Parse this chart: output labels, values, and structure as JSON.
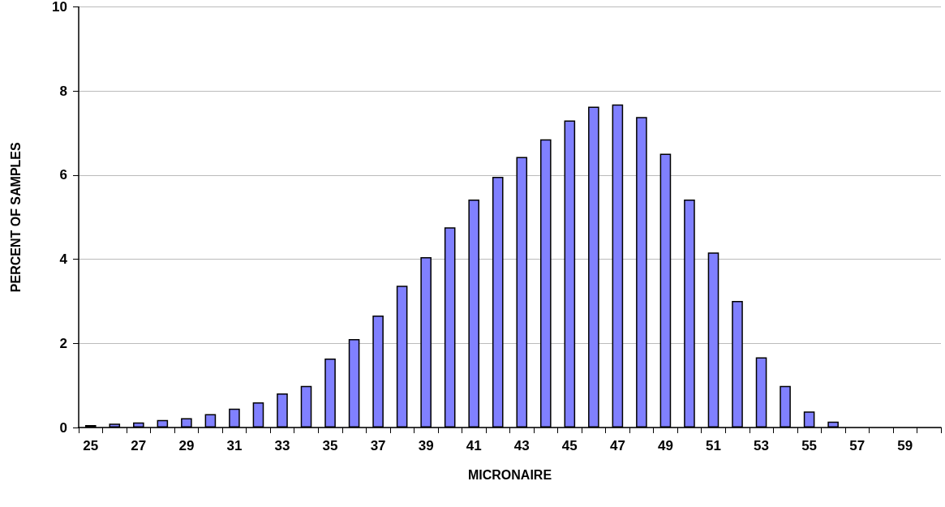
{
  "chart_data": {
    "type": "bar",
    "xlabel": "MICRONAIRE",
    "ylabel": "PERCENT OF SAMPLES",
    "categories": [
      "25",
      null,
      "27",
      null,
      "29",
      null,
      "31",
      null,
      "33",
      null,
      "35",
      null,
      "37",
      null,
      "39",
      null,
      "41",
      null,
      "43",
      null,
      "45",
      null,
      "47",
      null,
      "49",
      null,
      "51",
      null,
      "53",
      null,
      "55",
      null,
      "57",
      null,
      "59",
      null
    ],
    "values": [
      0.06,
      0.09,
      0.12,
      0.18,
      0.22,
      0.32,
      0.45,
      0.6,
      0.81,
      0.99,
      1.64,
      2.1,
      2.66,
      3.37,
      4.05,
      4.76,
      5.42,
      5.96,
      6.43,
      6.85,
      7.3,
      7.63,
      7.68,
      7.38,
      6.51,
      5.42,
      4.16,
      3.01,
      1.67,
      0.99,
      0.38,
      0.14,
      null,
      null,
      null,
      null
    ],
    "color": "#8080ff",
    "ylim": [
      0,
      10
    ],
    "yticks": [
      0,
      2,
      4,
      6,
      8,
      10
    ],
    "grid": "y"
  }
}
